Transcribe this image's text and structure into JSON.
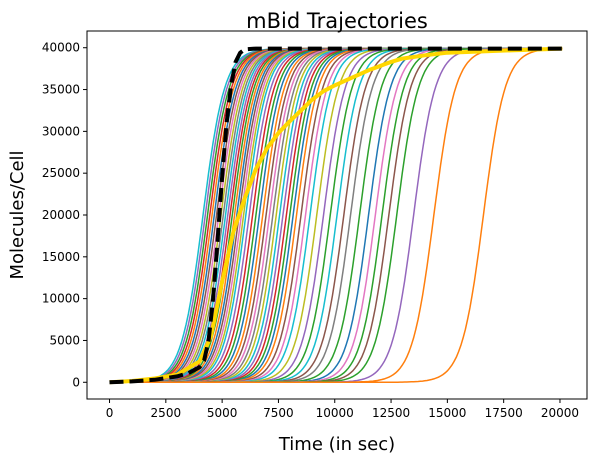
{
  "chart_data": {
    "type": "line",
    "title": "mBid Trajectories",
    "xlabel": "Time (in sec)",
    "ylabel": "Molecules/Cell",
    "xlim": [
      -1000,
      21200
    ],
    "ylim": [
      -2000,
      42000
    ],
    "xticks": [
      0,
      2500,
      5000,
      7500,
      10000,
      12500,
      15000,
      17500,
      20000
    ],
    "yticks": [
      0,
      5000,
      10000,
      15000,
      20000,
      25000,
      30000,
      35000,
      40000
    ],
    "grid": false,
    "legend": "none",
    "trajectory_model": {
      "form": "sigmoid",
      "plateau": 39900,
      "t_end": 20100,
      "rise_time_scale": 480
    },
    "series": [
      {
        "color": "#17becf",
        "midpoint": 4150
      },
      {
        "color": "#9467bd",
        "midpoint": 4250
      },
      {
        "color": "#2ca02c",
        "midpoint": 4350
      },
      {
        "color": "#d62728",
        "midpoint": 4450
      },
      {
        "color": "#ff7f0e",
        "midpoint": 4550
      },
      {
        "color": "#1f77b4",
        "midpoint": 4650
      },
      {
        "color": "#8c564b",
        "midpoint": 4750
      },
      {
        "color": "#e377c2",
        "midpoint": 4850
      },
      {
        "color": "#bcbd22",
        "midpoint": 4950
      },
      {
        "color": "#7f7f7f",
        "midpoint": 5050
      },
      {
        "color": "#17becf",
        "midpoint": 5150
      },
      {
        "color": "#9467bd",
        "midpoint": 5250
      },
      {
        "color": "#d62728",
        "midpoint": 5350
      },
      {
        "color": "#2ca02c",
        "midpoint": 5450
      },
      {
        "color": "#ff7f0e",
        "midpoint": 5550
      },
      {
        "color": "#1f77b4",
        "midpoint": 5650
      },
      {
        "color": "#8c564b",
        "midpoint": 5750
      },
      {
        "color": "#e377c2",
        "midpoint": 5850
      },
      {
        "color": "#bcbd22",
        "midpoint": 5950
      },
      {
        "color": "#17becf",
        "midpoint": 6050
      },
      {
        "color": "#9467bd",
        "midpoint": 6200
      },
      {
        "color": "#d62728",
        "midpoint": 6350
      },
      {
        "color": "#2ca02c",
        "midpoint": 6500
      },
      {
        "color": "#1f77b4",
        "midpoint": 6650
      },
      {
        "color": "#ff7f0e",
        "midpoint": 6800
      },
      {
        "color": "#8c564b",
        "midpoint": 6950
      },
      {
        "color": "#e377c2",
        "midpoint": 7100
      },
      {
        "color": "#7f7f7f",
        "midpoint": 7250
      },
      {
        "color": "#bcbd22",
        "midpoint": 7400
      },
      {
        "color": "#17becf",
        "midpoint": 7550
      },
      {
        "color": "#9467bd",
        "midpoint": 7700
      },
      {
        "color": "#d62728",
        "midpoint": 7850
      },
      {
        "color": "#2ca02c",
        "midpoint": 8000
      },
      {
        "color": "#1f77b4",
        "midpoint": 8150
      },
      {
        "color": "#ff7f0e",
        "midpoint": 8300
      },
      {
        "color": "#8c564b",
        "midpoint": 8500
      },
      {
        "color": "#e377c2",
        "midpoint": 8700
      },
      {
        "color": "#17becf",
        "midpoint": 8900
      },
      {
        "color": "#bcbd22",
        "midpoint": 9200
      },
      {
        "color": "#9467bd",
        "midpoint": 9500
      },
      {
        "color": "#2ca02c",
        "midpoint": 9800
      },
      {
        "color": "#17becf",
        "midpoint": 10100
      },
      {
        "color": "#8c564b",
        "midpoint": 10400
      },
      {
        "color": "#7f7f7f",
        "midpoint": 10700
      },
      {
        "color": "#2ca02c",
        "midpoint": 11100
      },
      {
        "color": "#1f77b4",
        "midpoint": 11500
      },
      {
        "color": "#e377c2",
        "midpoint": 11800
      },
      {
        "color": "#2ca02c",
        "midpoint": 12100
      },
      {
        "color": "#8c564b",
        "midpoint": 12400
      },
      {
        "color": "#2ca02c",
        "midpoint": 12750
      },
      {
        "color": "#9467bd",
        "midpoint": 13500
      },
      {
        "color": "#ff7f0e",
        "midpoint": 14400
      },
      {
        "color": "#ff7f0e",
        "midpoint": 16600
      }
    ],
    "mean_series": {
      "color": "#ffd700",
      "points": [
        [
          0,
          0
        ],
        [
          1000,
          150
        ],
        [
          2000,
          450
        ],
        [
          3000,
          900
        ],
        [
          4000,
          2500
        ],
        [
          4500,
          5500
        ],
        [
          5000,
          12000
        ],
        [
          5500,
          18000
        ],
        [
          6000,
          22000
        ],
        [
          6500,
          25500
        ],
        [
          7000,
          28000
        ],
        [
          7500,
          29800
        ],
        [
          8000,
          31200
        ],
        [
          8500,
          32500
        ],
        [
          9000,
          33800
        ],
        [
          9500,
          34800
        ],
        [
          10000,
          35500
        ],
        [
          10500,
          36100
        ],
        [
          11000,
          36700
        ],
        [
          11500,
          37300
        ],
        [
          12000,
          37800
        ],
        [
          12500,
          38300
        ],
        [
          13000,
          38700
        ],
        [
          14000,
          39100
        ],
        [
          15000,
          39400
        ],
        [
          16000,
          39500
        ],
        [
          18000,
          39700
        ],
        [
          20100,
          39900
        ]
      ]
    },
    "median_series": {
      "color": "#000000",
      "points": [
        [
          0,
          0
        ],
        [
          1000,
          100
        ],
        [
          2000,
          300
        ],
        [
          3000,
          700
        ],
        [
          3500,
          1100
        ],
        [
          4000,
          1800
        ],
        [
          4200,
          2600
        ],
        [
          4400,
          5000
        ],
        [
          4600,
          10000
        ],
        [
          4800,
          17000
        ],
        [
          5000,
          24500
        ],
        [
          5200,
          31000
        ],
        [
          5400,
          35500
        ],
        [
          5600,
          38300
        ],
        [
          5800,
          39400
        ],
        [
          6000,
          39800
        ],
        [
          6500,
          39900
        ],
        [
          20100,
          39900
        ]
      ]
    }
  }
}
